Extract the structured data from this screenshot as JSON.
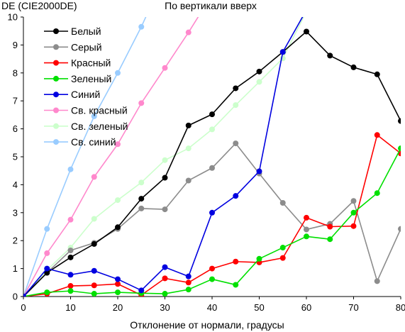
{
  "chart_data": {
    "type": "line",
    "title": "По вертикали вверх",
    "xlabel": "Отклонение от нормали, градусы",
    "ylabel": "DE (CIE2000DE)",
    "xlim": [
      0,
      80
    ],
    "ylim": [
      0,
      10
    ],
    "xticks": [
      0,
      10,
      20,
      30,
      40,
      50,
      60,
      70,
      80
    ],
    "yticks": [
      0,
      1,
      2,
      3,
      4,
      5,
      6,
      7,
      8,
      9,
      10
    ],
    "grid": false,
    "legend_position": "top-left",
    "series": [
      {
        "name": "Белый",
        "color": "#000000",
        "x": [
          0,
          5,
          10,
          15,
          20,
          25,
          30,
          35,
          40,
          45,
          50,
          55,
          60,
          65,
          70,
          75,
          80
        ],
        "y": [
          0,
          0.85,
          1.4,
          1.88,
          2.48,
          3.5,
          4.25,
          6.12,
          6.52,
          7.45,
          8.05,
          8.75,
          9.48,
          8.62,
          8.2,
          7.95,
          6.28
        ]
      },
      {
        "name": "Серый",
        "color": "#8c8c8c",
        "x": [
          0,
          5,
          10,
          15,
          20,
          25,
          30,
          35,
          40,
          45,
          50,
          55,
          60,
          65,
          70,
          75,
          80
        ],
        "y": [
          0,
          0.85,
          1.65,
          1.92,
          2.42,
          3.15,
          3.12,
          4.15,
          4.6,
          5.48,
          4.4,
          3.35,
          2.4,
          2.6,
          3.42,
          0.55,
          2.42
        ]
      },
      {
        "name": "Красный",
        "color": "#ff0000",
        "x": [
          0,
          5,
          10,
          15,
          20,
          25,
          30,
          35,
          40,
          45,
          50,
          55,
          60,
          65,
          70,
          75,
          80
        ],
        "y": [
          0,
          0.1,
          0.38,
          0.4,
          0.45,
          0.05,
          0.65,
          0.5,
          1.0,
          1.25,
          1.22,
          1.38,
          2.82,
          2.5,
          2.52,
          5.78,
          5.12
        ]
      },
      {
        "name": "Зеленый",
        "color": "#00e000",
        "x": [
          0,
          5,
          10,
          15,
          20,
          25,
          30,
          35,
          40,
          45,
          50,
          55,
          60,
          65,
          70,
          75,
          80
        ],
        "y": [
          0,
          0.15,
          0.2,
          0.1,
          0.15,
          0.12,
          0.1,
          0.25,
          0.62,
          0.42,
          1.35,
          1.75,
          2.15,
          2.05,
          3.0,
          3.7,
          5.3
        ]
      },
      {
        "name": "Синий",
        "color": "#0000e0",
        "x": [
          0,
          5,
          10,
          15,
          20,
          25,
          30,
          35,
          40,
          45,
          50,
          55,
          60
        ],
        "y": [
          0,
          1.0,
          0.78,
          0.92,
          0.62,
          0.22,
          1.05,
          0.72,
          3.0,
          3.6,
          4.48,
          8.75,
          10.25
        ]
      },
      {
        "name": "Св. красный",
        "color": "#ff88cc",
        "x": [
          0,
          5,
          10,
          15,
          20,
          25,
          30,
          35,
          40
        ],
        "y": [
          0,
          1.55,
          2.75,
          4.28,
          5.45,
          6.92,
          8.18,
          9.45,
          10.8
        ]
      },
      {
        "name": "Св. зеленый",
        "color": "#ccffcc",
        "x": [
          0,
          5,
          10,
          15,
          20,
          25,
          30,
          35,
          40,
          45,
          50,
          55,
          60
        ],
        "y": [
          0,
          0.95,
          1.75,
          2.78,
          3.45,
          4.08,
          4.88,
          5.3,
          5.98,
          6.85,
          7.68,
          8.52,
          10.2
        ]
      },
      {
        "name": "Св. синий",
        "color": "#99ccff",
        "x": [
          0,
          5,
          10,
          15,
          20,
          25,
          30
        ],
        "y": [
          0,
          2.42,
          4.55,
          6.45,
          8.0,
          9.65,
          11.5
        ]
      }
    ]
  }
}
